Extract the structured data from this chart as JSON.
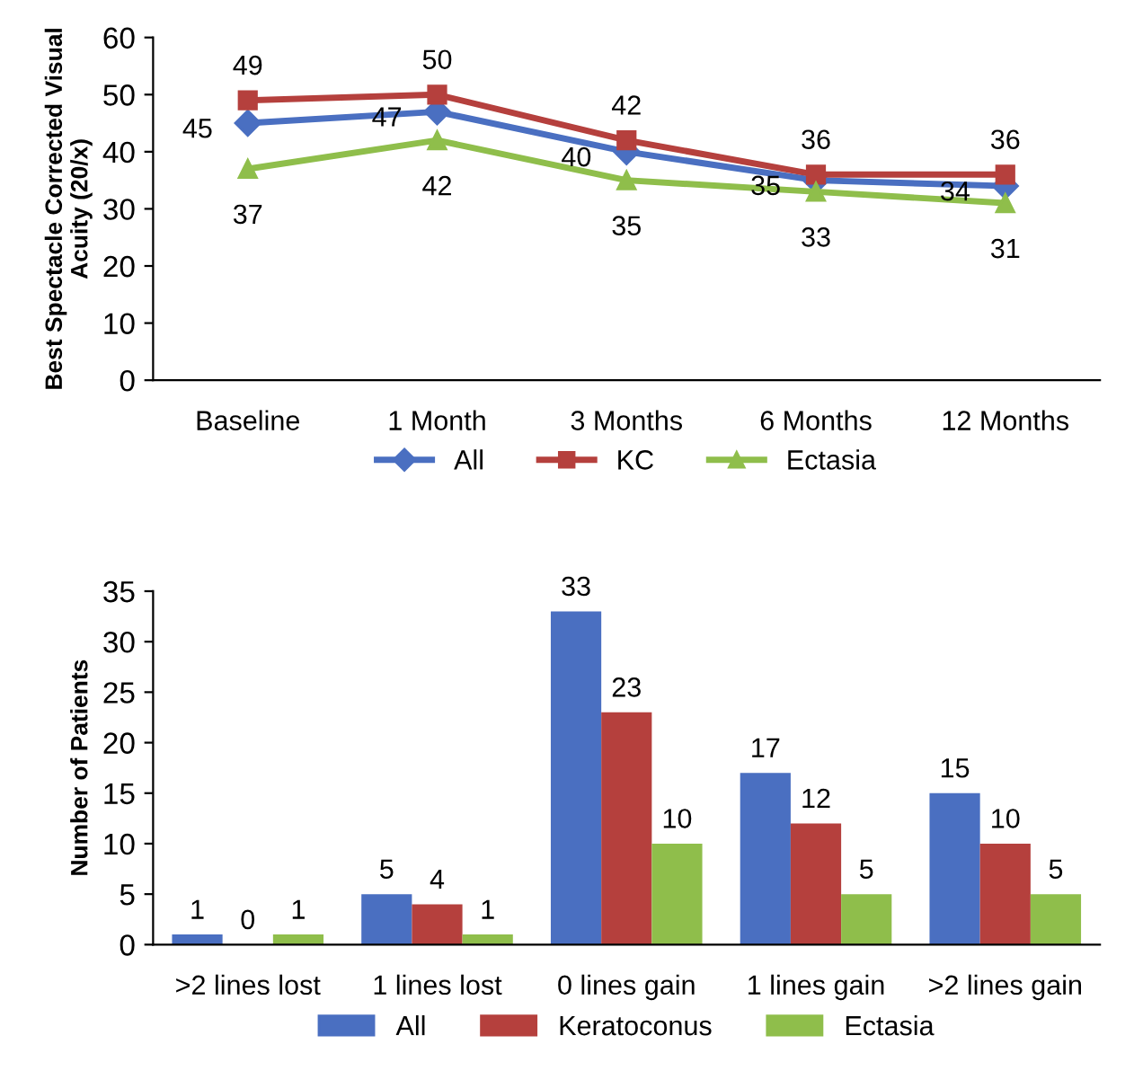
{
  "chart_data": [
    {
      "type": "line",
      "ylabel": "Best Spectacle Corrected Visual\nAcuity (20/x)",
      "categories": [
        "Baseline",
        "1 Month",
        "3 Months",
        "6 Months",
        "12 Months"
      ],
      "series": [
        {
          "name": "All",
          "color": "#4a6fc1",
          "marker": "diamond",
          "values": [
            45,
            47,
            40,
            35,
            34
          ]
        },
        {
          "name": "KC",
          "color": "#b5403d",
          "marker": "square",
          "values": [
            49,
            50,
            42,
            36,
            36
          ]
        },
        {
          "name": "Ectasia",
          "color": "#8fbe4b",
          "marker": "triangle",
          "values": [
            37,
            42,
            35,
            33,
            31
          ]
        }
      ],
      "ylim": [
        0,
        60
      ],
      "yticks": [
        0,
        10,
        20,
        30,
        40,
        50,
        60
      ],
      "grid": false,
      "legend": "bottom",
      "data_labels": true,
      "line_style": "solid"
    },
    {
      "type": "bar",
      "ylabel": "Number of Patients",
      "categories": [
        ">2 lines lost",
        "1 lines lost",
        "0 lines gain",
        "1 lines gain",
        ">2 lines gain"
      ],
      "series": [
        {
          "name": "All",
          "color": "#4a6fc1",
          "values": [
            1,
            5,
            33,
            17,
            15
          ]
        },
        {
          "name": "Keratoconus",
          "color": "#b5403d",
          "values": [
            0,
            4,
            23,
            12,
            10
          ]
        },
        {
          "name": "Ectasia",
          "color": "#8fbe4b",
          "values": [
            1,
            1,
            10,
            5,
            5
          ]
        }
      ],
      "ylim": [
        0,
        35
      ],
      "yticks": [
        0,
        5,
        10,
        15,
        20,
        25,
        30,
        35
      ],
      "grid": false,
      "legend": "bottom",
      "data_labels": true
    }
  ]
}
